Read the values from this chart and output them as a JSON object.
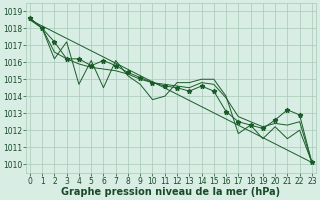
{
  "title": "Graphe pression niveau de la mer (hPa)",
  "x_values": [
    0,
    1,
    2,
    3,
    4,
    5,
    6,
    7,
    8,
    9,
    10,
    11,
    12,
    13,
    14,
    15,
    16,
    17,
    18,
    19,
    20,
    21,
    22,
    23
  ],
  "star_line": [
    1018.6,
    1018.0,
    1017.2,
    1016.2,
    1016.2,
    1015.8,
    1016.1,
    1015.8,
    1015.4,
    1015.1,
    1014.8,
    1014.6,
    1014.5,
    1014.3,
    1014.6,
    1014.3,
    1013.1,
    1012.5,
    1012.3,
    1012.1,
    1012.6,
    1013.2,
    1012.9,
    1010.1
  ],
  "zigzag_line": [
    1018.6,
    1018.0,
    1016.2,
    1017.2,
    1014.7,
    1016.1,
    1014.5,
    1016.1,
    1015.2,
    1014.7,
    1013.8,
    1014.0,
    1014.8,
    1014.8,
    1015.0,
    1015.0,
    1014.0,
    1011.8,
    1012.3,
    1011.5,
    1012.2,
    1011.5,
    1012.0,
    1010.1
  ],
  "smooth_line": [
    1018.5,
    1018.0,
    1016.6,
    1016.2,
    1015.9,
    1015.7,
    1015.6,
    1015.5,
    1015.3,
    1015.0,
    1014.8,
    1014.7,
    1014.6,
    1014.5,
    1014.8,
    1014.7,
    1013.9,
    1012.8,
    1012.5,
    1012.2,
    1012.4,
    1012.3,
    1012.5,
    1010.1
  ],
  "trend_line": [
    1018.5,
    1010.1
  ],
  "trend_x": [
    0,
    23
  ],
  "ylim": [
    1009.5,
    1019.5
  ],
  "yticks": [
    1010,
    1011,
    1012,
    1013,
    1014,
    1015,
    1016,
    1017,
    1018,
    1019
  ],
  "xlim": [
    -0.3,
    23.3
  ],
  "bg_color": "#d8ede4",
  "grid_color": "#a8c8b8",
  "line_color": "#1a5c28",
  "font_color": "#1a4a28",
  "title_fontsize": 7,
  "tick_fontsize": 5.5
}
